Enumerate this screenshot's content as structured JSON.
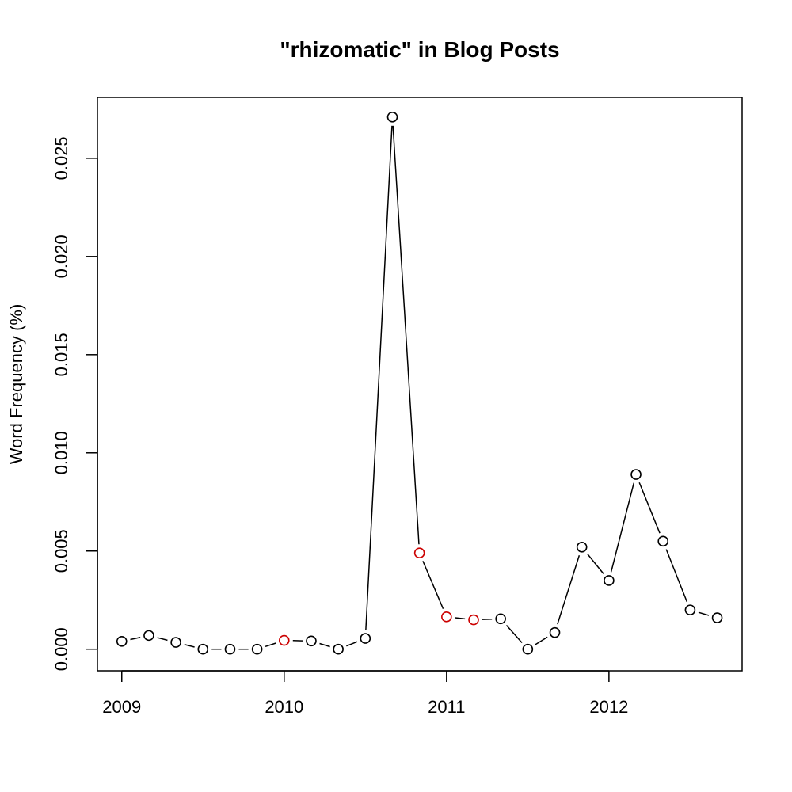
{
  "chart_data": {
    "type": "line",
    "title": "\"rhizomatic\" in Blog Posts",
    "xlabel": "",
    "ylabel": "Word Frequency (%)",
    "x_ticks": [
      "2009",
      "2010",
      "2011",
      "2012"
    ],
    "y_ticks": [
      "0.000",
      "0.005",
      "0.010",
      "0.015",
      "0.020",
      "0.025"
    ],
    "xlim": [
      2008.85,
      2012.82
    ],
    "ylim": [
      -0.0011,
      0.0281
    ],
    "grid": false,
    "legend": "none",
    "colors": {
      "normal_point": "#000000",
      "highlight_point": "#cc0000",
      "line": "#000000"
    },
    "series": [
      {
        "points": [
          {
            "x": 2009.0,
            "y": 0.0004,
            "highlight": false
          },
          {
            "x": 2009.1667,
            "y": 0.0007,
            "highlight": false
          },
          {
            "x": 2009.3333,
            "y": 0.00035,
            "highlight": false
          },
          {
            "x": 2009.5,
            "y": 0.0,
            "highlight": false
          },
          {
            "x": 2009.6667,
            "y": 0.0,
            "highlight": false
          },
          {
            "x": 2009.8333,
            "y": 0.0,
            "highlight": false
          },
          {
            "x": 2010.0,
            "y": 0.00045,
            "highlight": true
          },
          {
            "x": 2010.1667,
            "y": 0.00042,
            "highlight": false
          },
          {
            "x": 2010.3333,
            "y": 0.0,
            "highlight": false
          },
          {
            "x": 2010.5,
            "y": 0.00055,
            "highlight": false
          },
          {
            "x": 2010.6667,
            "y": 0.0271,
            "highlight": false
          },
          {
            "x": 2010.8333,
            "y": 0.0049,
            "highlight": true
          },
          {
            "x": 2011.0,
            "y": 0.00165,
            "highlight": true
          },
          {
            "x": 2011.1667,
            "y": 0.0015,
            "highlight": true
          },
          {
            "x": 2011.3333,
            "y": 0.00155,
            "highlight": false
          },
          {
            "x": 2011.5,
            "y": 0.0,
            "highlight": false
          },
          {
            "x": 2011.6667,
            "y": 0.00085,
            "highlight": false
          },
          {
            "x": 2011.8333,
            "y": 0.0052,
            "highlight": false
          },
          {
            "x": 2012.0,
            "y": 0.0035,
            "highlight": false
          },
          {
            "x": 2012.1667,
            "y": 0.0089,
            "highlight": false
          },
          {
            "x": 2012.3333,
            "y": 0.0055,
            "highlight": false
          },
          {
            "x": 2012.5,
            "y": 0.002,
            "highlight": false
          },
          {
            "x": 2012.6667,
            "y": 0.0016,
            "highlight": false
          }
        ]
      }
    ]
  }
}
